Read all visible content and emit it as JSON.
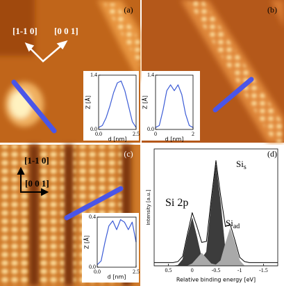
{
  "panels": [
    {
      "label": "(a)",
      "directions": [
        "[1-1 0]",
        "[0 0 1]"
      ]
    },
    {
      "label": "(b)"
    },
    {
      "label": "(c)",
      "directions": [
        "[1-1 0]",
        "[0 0 1]"
      ]
    },
    {
      "label": "(d)"
    }
  ],
  "chart_data": [
    {
      "type": "line",
      "xlabel": "d [nm]",
      "ylabel": "Z [Å]",
      "x": [
        0,
        0.25,
        0.5,
        0.75,
        1,
        1.25,
        1.5,
        1.75,
        2,
        2.25,
        2.5
      ],
      "series": [
        {
          "color": "#3b5bd6",
          "values": [
            0.05,
            0.1,
            0.3,
            0.6,
            0.95,
            1.2,
            1.25,
            1.0,
            0.6,
            0.2,
            0.05
          ]
        }
      ],
      "xlim": [
        0,
        2.5
      ],
      "xticks": [
        {
          "value": 0,
          "label": "0.0"
        },
        2.5
      ],
      "ylim": [
        0,
        1.4
      ],
      "yticks": [
        {
          "value": 0,
          "label": "0.0"
        },
        1.4
      ]
    },
    {
      "type": "line",
      "xlabel": "d [nm]",
      "ylabel": "Z [Å]",
      "x": [
        0,
        0.2,
        0.4,
        0.6,
        0.8,
        1,
        1.2,
        1.4,
        1.6,
        1.8,
        2
      ],
      "series": [
        {
          "color": "#3b5bd6",
          "values": [
            0.05,
            0.1,
            0.5,
            1.0,
            1.15,
            1.0,
            1.15,
            0.9,
            0.4,
            0.1,
            0.05
          ]
        }
      ],
      "xlim": [
        0,
        2
      ],
      "xticks": [
        0,
        2
      ],
      "ylim": [
        0,
        1.4
      ],
      "yticks": [
        {
          "value": 0,
          "label": "0.0"
        },
        1.4
      ]
    },
    {
      "type": "line",
      "xlabel": "d [nm]",
      "ylabel": "Z [Å]",
      "x": [
        0,
        0.25,
        0.5,
        0.75,
        1,
        1.25,
        1.5,
        1.75,
        2,
        2.25,
        2.5
      ],
      "series": [
        {
          "color": "#3b5bd6",
          "values": [
            0.02,
            0.05,
            0.2,
            0.33,
            0.37,
            0.3,
            0.38,
            0.36,
            0.3,
            0.36,
            0.2
          ]
        }
      ],
      "xlim": [
        0,
        2.5
      ],
      "xticks": [
        {
          "value": 0,
          "label": "0.0"
        },
        2.5
      ],
      "ylim": [
        0,
        0.4
      ],
      "yticks": [
        {
          "value": 0,
          "label": "0.0"
        },
        0.4
      ]
    },
    {
      "type": "line",
      "xlabel": "Relative binding energy [eV]",
      "ylabel": "Intensity [a.u.]",
      "annotations": [
        {
          "text": "Si 2p"
        },
        {
          "text": "Si",
          "subscript": "s"
        },
        {
          "text": "Si",
          "subscript": "ad"
        }
      ],
      "x": [
        0.8,
        0.7,
        0.6,
        0.5,
        0.4,
        0.3,
        0.2,
        0.1,
        0,
        -0.1,
        -0.2,
        -0.3,
        -0.4,
        -0.5,
        -0.6,
        -0.7,
        -0.8,
        -0.9,
        -1.0,
        -1.1,
        -1.2,
        -1.3,
        -1.4,
        -1.5,
        -1.6,
        -1.7,
        -1.8
      ],
      "series": [
        {
          "color": "#3c3c3c",
          "style": "area",
          "values": [
            0,
            0,
            0,
            0,
            0,
            0.005,
            0.06,
            0.27,
            0.45,
            0.27,
            0.07,
            0.13,
            0.58,
            0.95,
            0.58,
            0.13,
            0.01,
            0,
            0,
            0,
            0,
            0,
            0,
            0,
            0,
            0,
            0
          ]
        },
        {
          "color": "#a9a9a9",
          "style": "area",
          "values": [
            0,
            0,
            0,
            0,
            0,
            0,
            0,
            0,
            0.02,
            0.07,
            0.12,
            0.07,
            0.02,
            0.01,
            0.05,
            0.21,
            0.35,
            0.21,
            0.05,
            0,
            0,
            0,
            0,
            0,
            0,
            0,
            0
          ]
        },
        {
          "color": "#000000",
          "style": "line",
          "values": [
            0.03,
            0.03,
            0.03,
            0.03,
            0.03,
            0.04,
            0.09,
            0.3,
            0.5,
            0.37,
            0.22,
            0.23,
            0.63,
            0.99,
            0.66,
            0.37,
            0.39,
            0.24,
            0.08,
            0.04,
            0.03,
            0.03,
            0.03,
            0.03,
            0.03,
            0.03,
            0.03
          ]
        }
      ],
      "xlim": [
        0.8,
        -1.8
      ],
      "xticks": [
        0.5,
        0,
        -0.5,
        -1,
        -1.5
      ],
      "ylim": [
        0,
        1.1
      ]
    }
  ]
}
